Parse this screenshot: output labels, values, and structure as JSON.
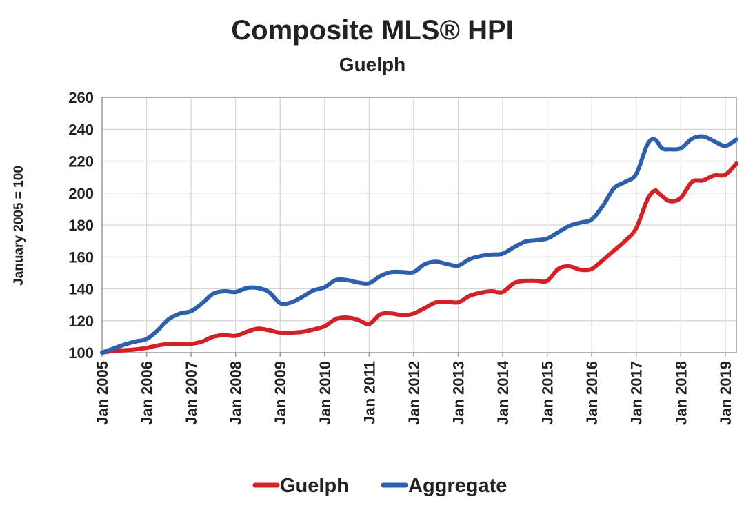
{
  "chart_data": {
    "type": "line",
    "title": "Composite MLS® HPI",
    "subtitle": "Guelph",
    "xlabel": "",
    "ylabel": "January 2005 = 100",
    "ylim": [
      100,
      260
    ],
    "y_ticks": [
      "100",
      "120",
      "140",
      "160",
      "180",
      "200",
      "220",
      "240",
      "260"
    ],
    "x_ticks": [
      "Jan 2005",
      "Jan 2006",
      "Jan 2007",
      "Jan 2008",
      "Jan 2009",
      "Jan 2010",
      "Jan 2011",
      "Jan 2012",
      "Jan 2013",
      "Jan 2014",
      "Jan 2015",
      "Jan 2016",
      "Jan 2017",
      "Jan 2018",
      "Jan 2019"
    ],
    "xlim": [
      "2005-01",
      "2019-04"
    ],
    "grid": true,
    "legend_position": "bottom",
    "series": [
      {
        "name": "Guelph",
        "color": "#d42027",
        "points": [
          [
            "2005-01",
            100
          ],
          [
            "2005-04",
            101
          ],
          [
            "2005-07",
            101.5
          ],
          [
            "2005-10",
            102
          ],
          [
            "2006-01",
            103
          ],
          [
            "2006-04",
            104.5
          ],
          [
            "2006-07",
            105.5
          ],
          [
            "2006-10",
            105.5
          ],
          [
            "2007-01",
            105.5
          ],
          [
            "2007-04",
            107
          ],
          [
            "2007-07",
            110
          ],
          [
            "2007-10",
            111
          ],
          [
            "2008-01",
            110.5
          ],
          [
            "2008-04",
            113
          ],
          [
            "2008-07",
            115
          ],
          [
            "2008-10",
            114
          ],
          [
            "2009-01",
            112.5
          ],
          [
            "2009-04",
            112.5
          ],
          [
            "2009-07",
            113
          ],
          [
            "2009-10",
            114.5
          ],
          [
            "2010-01",
            116.5
          ],
          [
            "2010-04",
            121
          ],
          [
            "2010-07",
            122
          ],
          [
            "2010-10",
            120.5
          ],
          [
            "2011-01",
            118
          ],
          [
            "2011-04",
            124
          ],
          [
            "2011-07",
            124.5
          ],
          [
            "2011-10",
            123.5
          ],
          [
            "2012-01",
            124.5
          ],
          [
            "2012-04",
            128
          ],
          [
            "2012-07",
            131.5
          ],
          [
            "2012-10",
            132
          ],
          [
            "2013-01",
            131.5
          ],
          [
            "2013-04",
            135.5
          ],
          [
            "2013-07",
            137.5
          ],
          [
            "2013-10",
            138.5
          ],
          [
            "2014-01",
            138
          ],
          [
            "2014-04",
            143.5
          ],
          [
            "2014-07",
            145
          ],
          [
            "2014-10",
            145
          ],
          [
            "2015-01",
            145
          ],
          [
            "2015-04",
            152.5
          ],
          [
            "2015-07",
            154
          ],
          [
            "2015-10",
            152
          ],
          [
            "2016-01",
            152.5
          ],
          [
            "2016-04",
            158
          ],
          [
            "2016-07",
            164
          ],
          [
            "2016-10",
            170
          ],
          [
            "2017-01",
            178
          ],
          [
            "2017-04",
            196
          ],
          [
            "2017-06",
            201.5
          ],
          [
            "2017-07",
            200
          ],
          [
            "2017-10",
            195
          ],
          [
            "2018-01",
            197
          ],
          [
            "2018-04",
            207
          ],
          [
            "2018-07",
            208
          ],
          [
            "2018-10",
            211
          ],
          [
            "2019-01",
            211.5
          ],
          [
            "2019-04",
            218.5
          ]
        ]
      },
      {
        "name": "Aggregate",
        "color": "#2e5fad",
        "points": [
          [
            "2005-01",
            100
          ],
          [
            "2005-04",
            102.5
          ],
          [
            "2005-07",
            105
          ],
          [
            "2005-10",
            107
          ],
          [
            "2006-01",
            108.5
          ],
          [
            "2006-04",
            114
          ],
          [
            "2006-07",
            121
          ],
          [
            "2006-10",
            124.5
          ],
          [
            "2007-01",
            126
          ],
          [
            "2007-04",
            131
          ],
          [
            "2007-07",
            137
          ],
          [
            "2007-10",
            138.5
          ],
          [
            "2008-01",
            138
          ],
          [
            "2008-04",
            140.5
          ],
          [
            "2008-07",
            140.5
          ],
          [
            "2008-10",
            138
          ],
          [
            "2009-01",
            131
          ],
          [
            "2009-04",
            131.5
          ],
          [
            "2009-07",
            135
          ],
          [
            "2009-10",
            139
          ],
          [
            "2010-01",
            141
          ],
          [
            "2010-04",
            145.5
          ],
          [
            "2010-07",
            145.5
          ],
          [
            "2010-10",
            144
          ],
          [
            "2011-01",
            143.5
          ],
          [
            "2011-04",
            148
          ],
          [
            "2011-07",
            150.5
          ],
          [
            "2011-10",
            150.5
          ],
          [
            "2012-01",
            150.5
          ],
          [
            "2012-04",
            155.5
          ],
          [
            "2012-07",
            157
          ],
          [
            "2012-10",
            155.5
          ],
          [
            "2013-01",
            154.5
          ],
          [
            "2013-04",
            158.5
          ],
          [
            "2013-07",
            160.5
          ],
          [
            "2013-10",
            161.5
          ],
          [
            "2014-01",
            162
          ],
          [
            "2014-04",
            166
          ],
          [
            "2014-07",
            169.5
          ],
          [
            "2014-10",
            170.5
          ],
          [
            "2015-01",
            171.5
          ],
          [
            "2015-04",
            175.5
          ],
          [
            "2015-07",
            179.5
          ],
          [
            "2015-10",
            181.5
          ],
          [
            "2016-01",
            183.5
          ],
          [
            "2016-04",
            192
          ],
          [
            "2016-07",
            203
          ],
          [
            "2016-10",
            207
          ],
          [
            "2017-01",
            212
          ],
          [
            "2017-04",
            230.5
          ],
          [
            "2017-06",
            233.5
          ],
          [
            "2017-08",
            228
          ],
          [
            "2017-10",
            227.5
          ],
          [
            "2018-01",
            228
          ],
          [
            "2018-04",
            234
          ],
          [
            "2018-07",
            235.5
          ],
          [
            "2018-10",
            232.5
          ],
          [
            "2019-01",
            229.5
          ],
          [
            "2019-04",
            233.5
          ]
        ]
      }
    ]
  }
}
